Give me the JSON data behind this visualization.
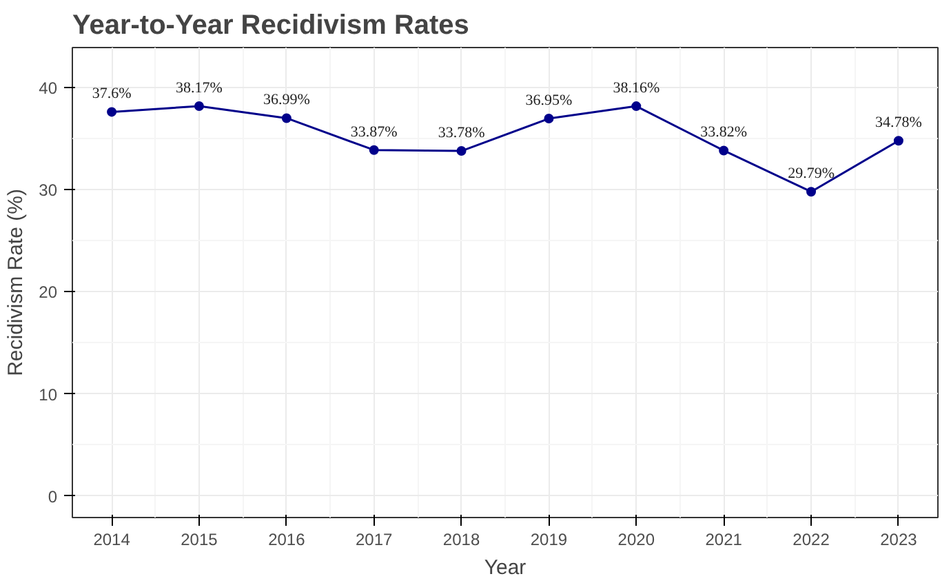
{
  "chart_data": {
    "type": "line",
    "title": "Year-to-Year Recidivism Rates",
    "xlabel": "Year",
    "ylabel": "Recidivism Rate (%)",
    "x": [
      2014,
      2015,
      2016,
      2017,
      2018,
      2019,
      2020,
      2021,
      2022,
      2023
    ],
    "series": [
      {
        "color": "#00008b",
        "values": [
          37.6,
          38.17,
          36.99,
          33.87,
          33.78,
          36.95,
          38.16,
          33.82,
          29.79,
          34.78
        ],
        "value_labels": [
          "37.6%",
          "38.17%",
          "36.99%",
          "33.87%",
          "33.78%",
          "36.95%",
          "38.16%",
          "33.82%",
          "29.79%",
          "34.78%"
        ]
      }
    ],
    "xlim": [
      2013.55,
      2023.45
    ],
    "xticks": [
      2014,
      2015,
      2016,
      2017,
      2018,
      2019,
      2020,
      2021,
      2022,
      2023
    ],
    "ylim": [
      -2.1,
      43.9
    ],
    "yticks": [
      0,
      10,
      20,
      30,
      40
    ],
    "grid": true,
    "marker": "circle",
    "line_style": "solid"
  }
}
